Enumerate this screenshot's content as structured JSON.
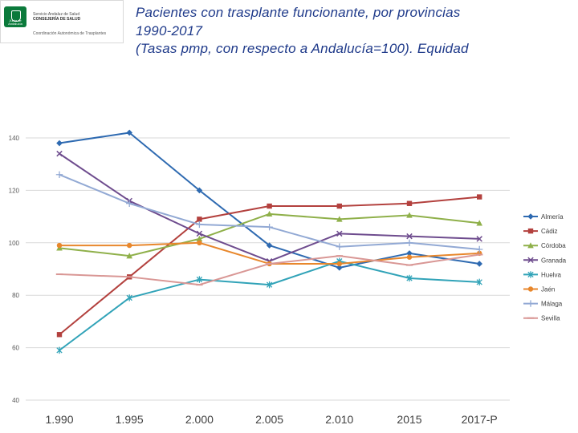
{
  "logo": {
    "line1": "Servicio Andaluz de Salud",
    "line2": "CONSEJERÍA DE SALUD",
    "line3": "Coordinación Autonómica de Trasplantes",
    "mark_text": "Junta de Andalucía",
    "mark_color": "#0b7a3b"
  },
  "title": {
    "line1": "Pacientes con trasplante funcionante, por provincias",
    "line2": "1990-2017",
    "line3": "(Tasas pmp, con respecto a Andalucía=100). Equidad"
  },
  "chart_data": {
    "type": "line",
    "categories": [
      "1.990",
      "1.995",
      "2.000",
      "2.005",
      "2.010",
      "2015",
      "2017-P"
    ],
    "ylim": [
      40,
      140
    ],
    "yticks": [
      40,
      60,
      80,
      100,
      120,
      140
    ],
    "grid": true,
    "legend_position": "right",
    "series": [
      {
        "name": "Almería",
        "color": "#2e6ab1",
        "marker": "diamond",
        "values": [
          138,
          142,
          120,
          99,
          90.5,
          96,
          92
        ]
      },
      {
        "name": "Cádiz",
        "color": "#b3413e",
        "marker": "square",
        "values": [
          65,
          87,
          109,
          114,
          114,
          115,
          117.5
        ]
      },
      {
        "name": "Córdoba",
        "color": "#8fb04a",
        "marker": "triangle",
        "values": [
          98,
          95,
          101.5,
          111,
          109,
          110.5,
          107.5
        ]
      },
      {
        "name": "Granada",
        "color": "#6e4c8e",
        "marker": "x",
        "values": [
          134,
          116,
          103.5,
          93,
          103.5,
          102.5,
          101.5
        ]
      },
      {
        "name": "Huelva",
        "color": "#31a3b8",
        "marker": "star",
        "values": [
          59,
          79,
          86,
          84,
          93,
          86.5,
          85
        ]
      },
      {
        "name": "Jaén",
        "color": "#e8872c",
        "marker": "circle",
        "values": [
          99,
          99,
          100,
          92,
          92,
          94.5,
          96
        ]
      },
      {
        "name": "Málaga",
        "color": "#92a9d4",
        "marker": "plus",
        "values": [
          126,
          115,
          107,
          106,
          98.5,
          100,
          97.5
        ]
      },
      {
        "name": "Sevilla",
        "color": "#d99795",
        "marker": "dash",
        "values": [
          88,
          87,
          84,
          92,
          95,
          91.5,
          95.5
        ]
      }
    ]
  }
}
